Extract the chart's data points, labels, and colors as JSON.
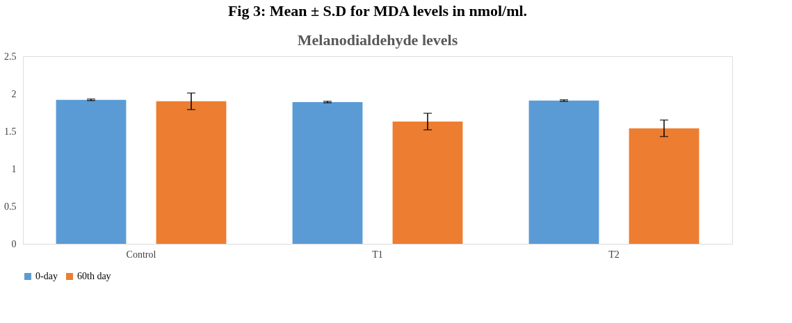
{
  "chart_data": {
    "type": "bar",
    "title": "Fig 3: Mean ± S.D for MDA levels in nmol/ml.",
    "subtitle": "Melanodialdehyde levels",
    "categories": [
      "Control",
      "T1",
      "T2"
    ],
    "series": [
      {
        "name": "0-day",
        "color": "#5b9bd5",
        "values": [
          1.92,
          1.89,
          1.91
        ],
        "errors": [
          0.01,
          0.01,
          0.01
        ]
      },
      {
        "name": "60th day",
        "color": "#ed7d31",
        "values": [
          1.9,
          1.63,
          1.54
        ],
        "errors": [
          0.11,
          0.11,
          0.11
        ]
      }
    ],
    "ylim": [
      0,
      2.5
    ],
    "yticks": [
      0,
      0.5,
      1,
      1.5,
      2,
      2.5
    ],
    "grid": false,
    "legend": "bottom"
  }
}
